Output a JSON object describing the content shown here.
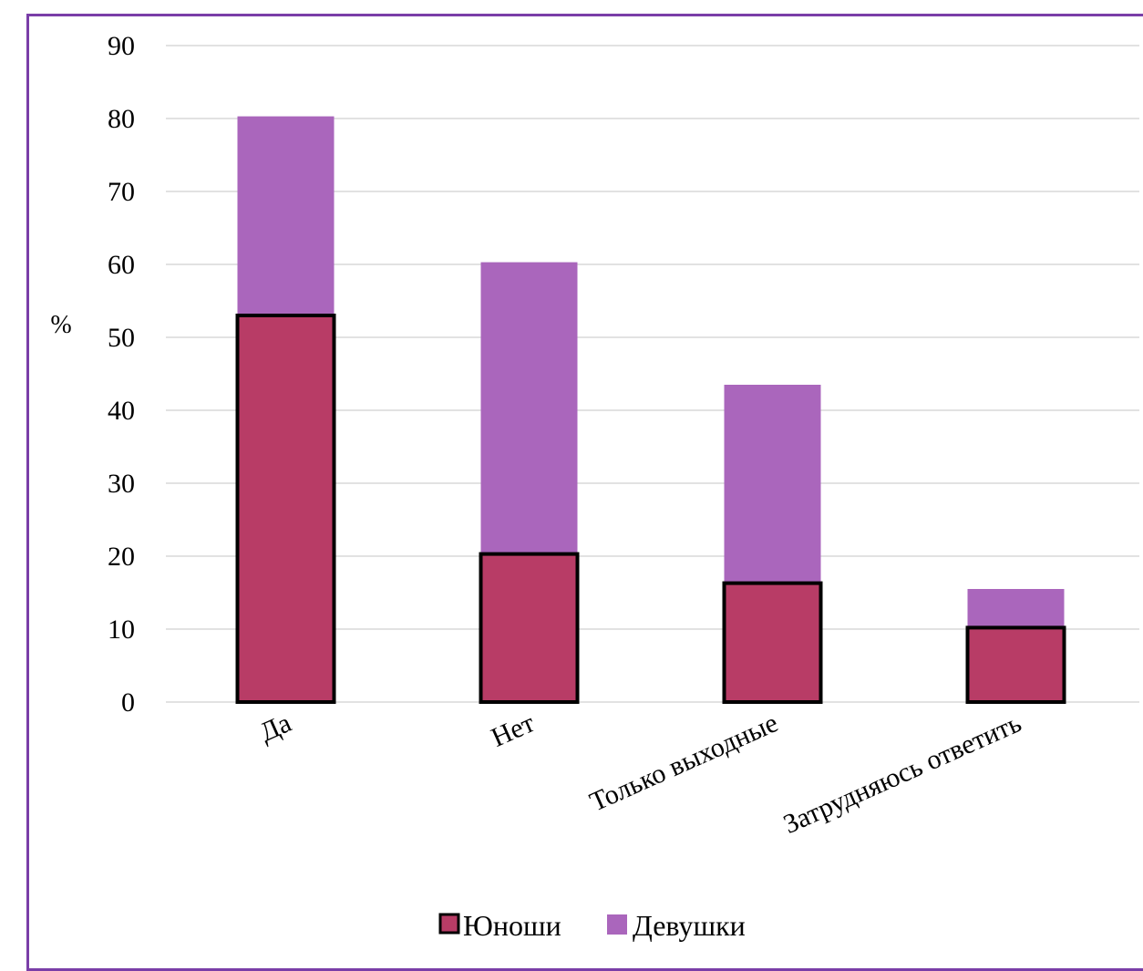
{
  "chart_data": {
    "type": "bar",
    "stacked": true,
    "categories": [
      "Да",
      "Нет",
      "Только выходные",
      "Затрудняюсь ответить"
    ],
    "series": [
      {
        "name": "Юноши",
        "values": [
          53,
          20.3,
          16.3,
          10.2
        ],
        "color": "#b83c66",
        "outline": "#000000"
      },
      {
        "name": "Девушки",
        "values": [
          27.3,
          40,
          27.2,
          5.3
        ],
        "color": "#aa66bc"
      }
    ],
    "ylabel": "%",
    "xlabel": "",
    "title": "",
    "ylim": [
      0,
      90
    ],
    "yticks": [
      "0",
      "10",
      "20",
      "30",
      "40",
      "50",
      "60",
      "70",
      "80",
      "90"
    ],
    "grid": true,
    "legend": "bottom-center"
  },
  "frame": {
    "border_color": "#7a3ea8"
  }
}
